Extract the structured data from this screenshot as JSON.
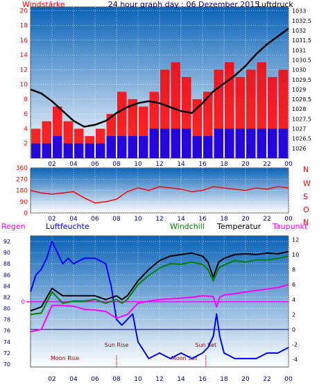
{
  "colors": {
    "red": "#ff0000",
    "blue": "#0000ff",
    "green": "#008000",
    "magenta": "#ff00ff",
    "black": "#000000",
    "navy": "#000080",
    "darkred": "#990000",
    "bg_top": "#0a63b8",
    "bg_bottom": "#ffffff"
  },
  "chart_data": [
    {
      "type": "line",
      "title": "24 hour graph day : 06 Dezember 2015",
      "left_label": "Windstärke",
      "right_label": "Luftdruck",
      "x_ticks": [
        "02",
        "04",
        "06",
        "08",
        "10",
        "12",
        "14",
        "16",
        "18",
        "20",
        "22",
        "00"
      ],
      "y_left": {
        "min": 0,
        "max": 20.5,
        "ticks": [
          2,
          4,
          6,
          8,
          10,
          12,
          14,
          16,
          18,
          20
        ]
      },
      "y_right": {
        "min": 1025.5,
        "max": 1033.2,
        "ticks": [
          "1026",
          "1026.5",
          "1027",
          "1027.5",
          "1028",
          "1028.5",
          "1029",
          "1029.5",
          "1030",
          "1030.5",
          "1031",
          "1031.5",
          "1032",
          "1032.5",
          "1033"
        ]
      },
      "grid": true,
      "series": [
        {
          "name": "Windstärke",
          "axis": "left",
          "color": "red",
          "style": "bars",
          "hours": [
            0.5,
            1.5,
            2.5,
            3.5,
            4.5,
            5.5,
            6.5,
            7.5,
            8.5,
            9.5,
            10.5,
            11.5,
            12.5,
            13.5,
            14.5,
            15.5,
            16.5,
            17.5,
            18.5,
            19.5,
            20.5,
            21.5,
            22.5,
            23.5
          ],
          "values": [
            4,
            5,
            7,
            5,
            4,
            3,
            4,
            6,
            9,
            8,
            7,
            9,
            12,
            13,
            11,
            8,
            9,
            12,
            13,
            11,
            12,
            13,
            11,
            12
          ]
        },
        {
          "name": "Wind gust",
          "axis": "left",
          "color": "blue",
          "style": "bars",
          "hours": [
            0.5,
            1.5,
            2.5,
            3.5,
            4.5,
            5.5,
            6.5,
            7.5,
            8.5,
            9.5,
            10.5,
            11.5,
            12.5,
            13.5,
            14.5,
            15.5,
            16.5,
            17.5,
            18.5,
            19.5,
            20.5,
            21.5,
            22.5,
            23.5
          ],
          "values": [
            2,
            2,
            3,
            2,
            2,
            2,
            2,
            3,
            3,
            3,
            3,
            4,
            4,
            4,
            4,
            3,
            3,
            4,
            4,
            4,
            4,
            4,
            4,
            4
          ]
        },
        {
          "name": "Luftdruck",
          "axis": "right",
          "color": "black",
          "style": "line",
          "hours": [
            0,
            1,
            2,
            3,
            4,
            5,
            6,
            7,
            8,
            9,
            10,
            11,
            12,
            13,
            14,
            15,
            16,
            17,
            18,
            19,
            20,
            21,
            22,
            23,
            24
          ],
          "values": [
            1029.0,
            1028.8,
            1028.4,
            1027.9,
            1027.4,
            1027.1,
            1027.2,
            1027.4,
            1027.8,
            1028.1,
            1028.3,
            1028.4,
            1028.3,
            1028.1,
            1027.9,
            1027.8,
            1028.3,
            1028.9,
            1029.3,
            1029.7,
            1030.2,
            1030.8,
            1031.3,
            1031.7,
            1032.1
          ]
        }
      ]
    },
    {
      "type": "line",
      "title": "",
      "left_ticks": [
        0,
        90,
        180,
        270,
        360
      ],
      "right_labels": [
        "N",
        "W",
        "S",
        "O",
        "N"
      ],
      "x_ticks": [
        "02",
        "04",
        "06",
        "08",
        "10",
        "12",
        "14",
        "16",
        "18",
        "20",
        "22",
        "00"
      ],
      "grid": true,
      "series": [
        {
          "name": "Wind direction",
          "color": "red",
          "hours": [
            0,
            1,
            2,
            3,
            4,
            5,
            6,
            7,
            8,
            9,
            10,
            11,
            12,
            13,
            14,
            15,
            16,
            17,
            18,
            19,
            20,
            21,
            22,
            23,
            24
          ],
          "values": [
            180,
            160,
            150,
            160,
            170,
            120,
            80,
            90,
            110,
            170,
            200,
            180,
            210,
            200,
            190,
            170,
            180,
            210,
            200,
            190,
            180,
            200,
            190,
            210,
            200
          ]
        }
      ]
    },
    {
      "type": "line",
      "title": "",
      "labels": {
        "regen": "Regen",
        "luftfeuchte": "Luftfeuchte",
        "windchill": "Windchill",
        "temperatur": "Temperatur",
        "taupunkt": "Taupunkt"
      },
      "regen_value": "0",
      "y_left": {
        "min": 69.5,
        "max": 93,
        "ticks": [
          70,
          72,
          74,
          76,
          78,
          80,
          82,
          84,
          86,
          88,
          90,
          92
        ]
      },
      "y_right": {
        "min": -5,
        "max": 12.5,
        "ticks": [
          -4,
          -2,
          0,
          2,
          4,
          6,
          8,
          10,
          12
        ]
      },
      "x_ticks": [
        "02",
        "04",
        "06",
        "08",
        "10",
        "12",
        "14",
        "16",
        "18",
        "20",
        "22",
        "00"
      ],
      "grid": true,
      "annotations": [
        {
          "text": "Moon Rise",
          "hour": 3.2
        },
        {
          "text": "Sun Rise",
          "hour": 8.0
        },
        {
          "text": "Moon Set",
          "hour": 14.3
        },
        {
          "text": "Sun Set",
          "hour": 16.3
        }
      ],
      "series": [
        {
          "name": "Luftfeuchte",
          "axis": "left",
          "color": "blue",
          "hours": [
            0,
            0.5,
            1,
            1.5,
            2,
            2.5,
            3,
            3.5,
            4,
            5,
            6,
            7,
            7.5,
            8,
            8.5,
            9,
            9.5,
            10,
            11,
            12,
            13,
            14,
            15,
            16,
            16.5,
            17,
            17.3,
            17.6,
            18,
            19,
            20,
            21,
            22,
            23,
            24
          ],
          "values": [
            83,
            86,
            87,
            89,
            92,
            90,
            88,
            89,
            88,
            89,
            89,
            88,
            84,
            78,
            77,
            78,
            79,
            74,
            71,
            72,
            71,
            72,
            71,
            72,
            73,
            75,
            79,
            75,
            72,
            71,
            71,
            71,
            72,
            72,
            73
          ]
        },
        {
          "name": "Temperatur",
          "axis": "right",
          "color": "black",
          "hours": [
            0,
            1,
            2,
            3,
            4,
            5,
            6,
            7,
            8,
            8.5,
            9,
            10,
            11,
            12,
            13,
            14,
            15,
            16,
            16.5,
            17,
            17.5,
            18,
            19,
            20,
            21,
            22,
            23,
            24
          ],
          "values": [
            2.5,
            3,
            5.5,
            4.5,
            4.5,
            4.5,
            4.5,
            4.0,
            4.5,
            4,
            4.5,
            6.5,
            8,
            9.2,
            9.8,
            10,
            10.2,
            9.8,
            9,
            7,
            9,
            9.5,
            10,
            10.1,
            10,
            10.2,
            10.1,
            10.4
          ]
        },
        {
          "name": "Windchill",
          "axis": "right",
          "color": "green",
          "hours": [
            0,
            1,
            2,
            3,
            4,
            5,
            6,
            7,
            8,
            8.5,
            9,
            10,
            11,
            12,
            13,
            14,
            15,
            16,
            16.5,
            17,
            17.5,
            18,
            19,
            20,
            21,
            22,
            23,
            24
          ],
          "values": [
            2.0,
            2.2,
            5.0,
            3.5,
            3.8,
            3.8,
            4.0,
            3.5,
            4.0,
            3.5,
            4.0,
            6.0,
            7.2,
            8.2,
            8.8,
            8.7,
            9.0,
            8.7,
            8.0,
            6.5,
            8.2,
            8.6,
            9.2,
            9.0,
            9.3,
            9.3,
            9.5,
            9.8
          ]
        },
        {
          "name": "Taupunkt",
          "axis": "right",
          "color": "magenta",
          "hours": [
            0,
            1,
            2,
            3,
            4,
            5,
            6,
            7,
            8,
            9,
            10,
            11,
            12,
            13,
            14,
            15,
            16,
            17,
            17.3,
            17.6,
            18,
            19,
            20,
            21,
            22,
            23,
            24
          ],
          "values": [
            -0.3,
            0,
            3.2,
            3.2,
            3.1,
            2.7,
            2.6,
            2.4,
            1.5,
            2.0,
            3.5,
            3.8,
            4.0,
            4.1,
            4.2,
            4.3,
            4.5,
            4.4,
            3.0,
            4.3,
            4.6,
            4.8,
            5.0,
            5.2,
            5.4,
            5.6,
            6.0
          ]
        }
      ]
    }
  ]
}
